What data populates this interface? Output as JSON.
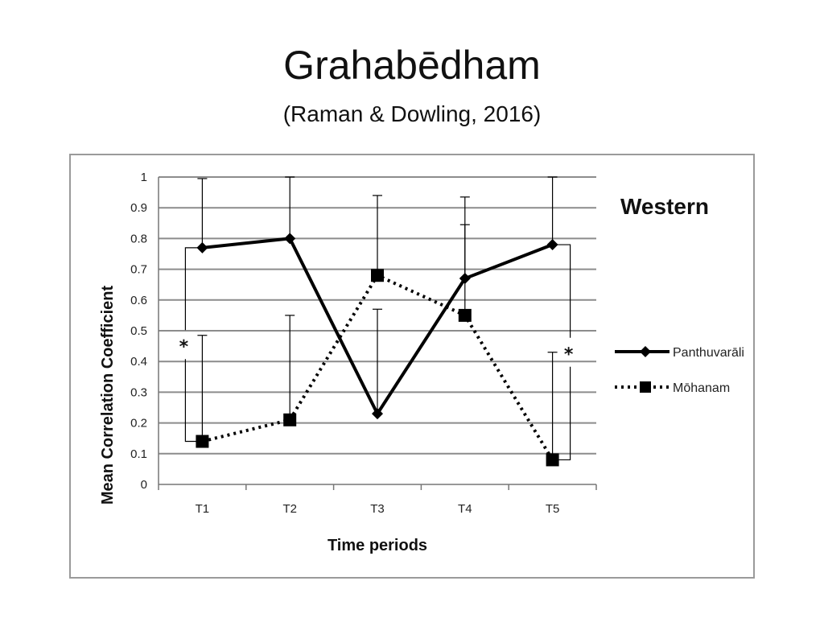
{
  "slide": {
    "title": "Grahabēdham",
    "subtitle": "(Raman & Dowling, 2016)"
  },
  "chart_data": {
    "type": "line",
    "panel_label": "Western",
    "xlabel": "Time periods",
    "ylabel": "Mean Correlation Coefficient",
    "categories": [
      "T1",
      "T2",
      "T3",
      "T4",
      "T5"
    ],
    "ylim": [
      0,
      1
    ],
    "yticks": [
      0,
      0.1,
      0.2,
      0.3,
      0.4,
      0.5,
      0.6,
      0.7,
      0.8,
      0.9,
      1
    ],
    "ytick_labels": [
      "0",
      "0.1",
      "0.2",
      "0.3",
      "0.4",
      "0.5",
      "0.6",
      "0.7",
      "0.8",
      "0.9",
      "1"
    ],
    "grid": true,
    "legend_position": "right",
    "series": [
      {
        "name": "Panthuvarāli",
        "marker": "diamond",
        "line_style": "solid",
        "color": "#000000",
        "values": [
          0.77,
          0.8,
          0.23,
          0.67,
          0.78
        ],
        "error_upper": [
          0.995,
          1.0,
          0.57,
          0.845,
          1.0
        ]
      },
      {
        "name": "Mōhanam",
        "marker": "square",
        "line_style": "dotted",
        "color": "#000000",
        "values": [
          0.14,
          0.21,
          0.68,
          0.55,
          0.08
        ],
        "error_upper": [
          0.485,
          0.55,
          0.94,
          0.935,
          0.43
        ]
      }
    ],
    "annotations": [
      {
        "text": "*",
        "between": [
          "Panthuvarāli",
          "Mōhanam"
        ],
        "category": "T1"
      },
      {
        "text": "*",
        "between": [
          "Panthuvarāli",
          "Mōhanam"
        ],
        "category": "T5"
      }
    ]
  }
}
